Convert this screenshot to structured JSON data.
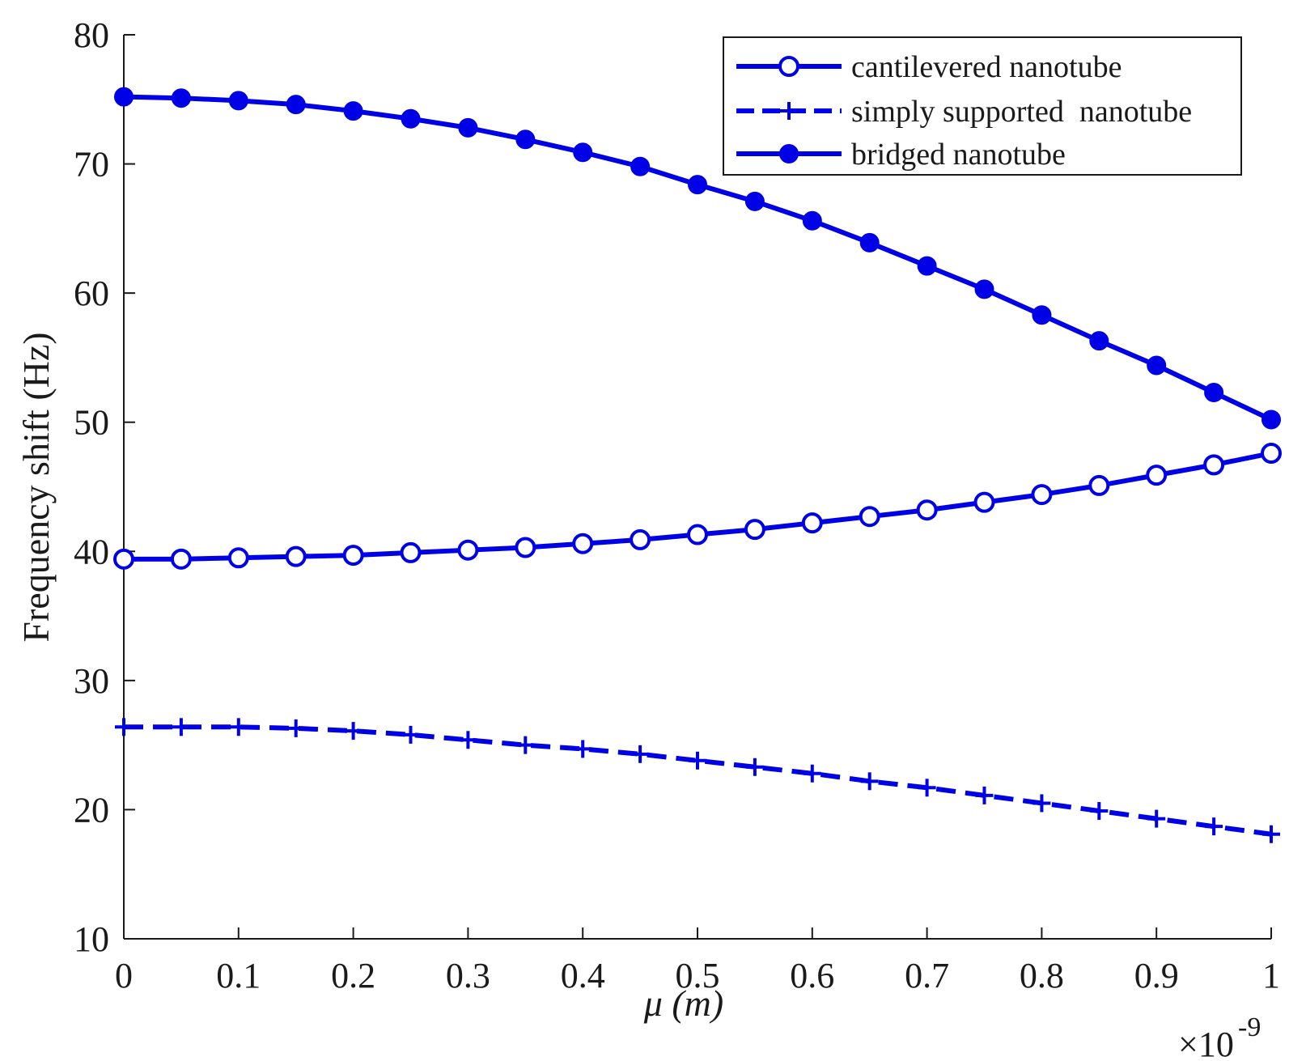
{
  "chart_data": {
    "type": "line",
    "title": "",
    "xlabel": "μ (m)",
    "ylabel": "Frequency shift (Hz)",
    "x_multiplier_label": "×10",
    "x_multiplier_exponent": "-9",
    "xlim": [
      0,
      1
    ],
    "ylim": [
      10,
      80
    ],
    "xticks": [
      "0",
      "0.1",
      "0.2",
      "0.3",
      "0.4",
      "0.5",
      "0.6",
      "0.7",
      "0.8",
      "0.9",
      "1"
    ],
    "yticks": [
      "10",
      "20",
      "30",
      "40",
      "50",
      "60",
      "70",
      "80"
    ],
    "grid": false,
    "legend_position": "top-right",
    "line_color": "#0000e6",
    "x": [
      0,
      0.05,
      0.1,
      0.15,
      0.2,
      0.25,
      0.3,
      0.35,
      0.4,
      0.45,
      0.5,
      0.55,
      0.6,
      0.65,
      0.7,
      0.75,
      0.8,
      0.85,
      0.9,
      0.95,
      1.0
    ],
    "series": [
      {
        "name": "cantilevered nanotube",
        "marker": "open-circle",
        "line_style": "solid",
        "values": [
          39.4,
          39.4,
          39.5,
          39.6,
          39.7,
          39.9,
          40.1,
          40.3,
          40.6,
          40.9,
          41.3,
          41.7,
          42.2,
          42.7,
          43.2,
          43.8,
          44.4,
          45.1,
          45.9,
          46.7,
          47.6
        ]
      },
      {
        "name": "simply supported  nanotube",
        "marker": "plus",
        "line_style": "dashed",
        "values": [
          26.4,
          26.4,
          26.4,
          26.3,
          26.1,
          25.8,
          25.4,
          25.0,
          24.7,
          24.3,
          23.8,
          23.3,
          22.8,
          22.2,
          21.7,
          21.1,
          20.5,
          19.9,
          19.3,
          18.7,
          18.1
        ]
      },
      {
        "name": "bridged nanotube",
        "marker": "filled-circle",
        "line_style": "solid",
        "values": [
          75.2,
          75.1,
          74.9,
          74.6,
          74.1,
          73.5,
          72.8,
          71.9,
          70.9,
          69.8,
          68.4,
          67.1,
          65.6,
          63.9,
          62.1,
          60.3,
          58.3,
          56.3,
          54.4,
          52.3,
          50.2
        ]
      }
    ]
  }
}
